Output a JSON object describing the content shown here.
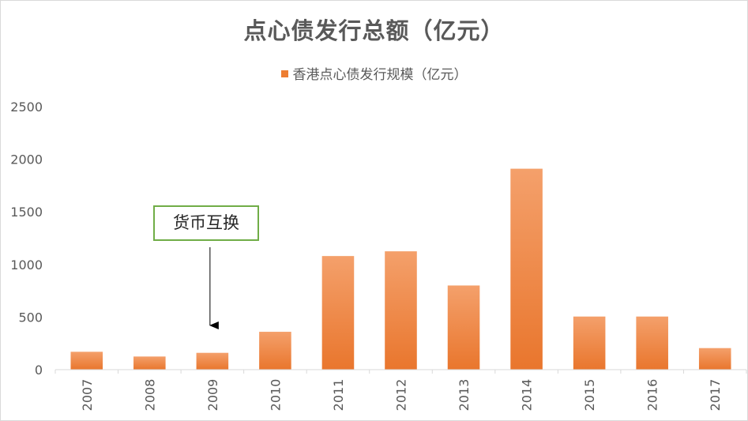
{
  "chart_data": {
    "type": "bar",
    "title": "点心债发行总额（亿元）",
    "legend_position": "top",
    "categories": [
      "2007",
      "2008",
      "2009",
      "2010",
      "2011",
      "2012",
      "2013",
      "2014",
      "2015",
      "2016",
      "2017"
    ],
    "series": [
      {
        "name": "香港点心债发行规模（亿元）",
        "values": [
          170,
          125,
          160,
          360,
          1080,
          1125,
          800,
          1910,
          505,
          505,
          205
        ]
      }
    ],
    "ylim": [
      0,
      2500
    ],
    "yticks": [
      "0",
      "500",
      "1000",
      "1500",
      "2000",
      "2500"
    ],
    "grid": false,
    "annotation": {
      "text": "货币互换",
      "target_category": "2009"
    }
  },
  "colors": {
    "bar_top": "#f4a06b",
    "bar_bottom": "#e9762d",
    "annotation_border": "#70ad47",
    "text": "#595959"
  }
}
